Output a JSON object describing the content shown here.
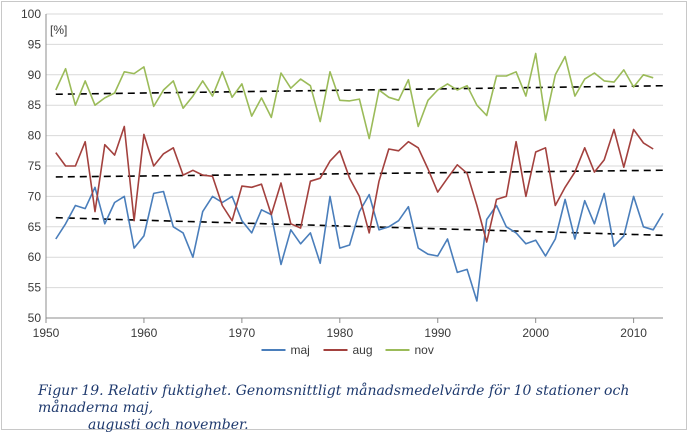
{
  "chart_data": {
    "type": "line",
    "unit_label": "[%]",
    "xlim": [
      1950,
      2013
    ],
    "ylim": [
      50,
      100
    ],
    "x_ticks": [
      1950,
      1960,
      1970,
      1980,
      1990,
      2000,
      2010
    ],
    "y_ticks": [
      50,
      55,
      60,
      65,
      70,
      75,
      80,
      85,
      90,
      95,
      100
    ],
    "grid": true,
    "legend_position": "bottom-center",
    "x": [
      1951,
      1952,
      1953,
      1954,
      1955,
      1956,
      1957,
      1958,
      1959,
      1960,
      1961,
      1962,
      1963,
      1964,
      1965,
      1966,
      1967,
      1968,
      1969,
      1970,
      1971,
      1972,
      1973,
      1974,
      1975,
      1976,
      1977,
      1978,
      1979,
      1980,
      1981,
      1982,
      1983,
      1984,
      1985,
      1986,
      1987,
      1988,
      1989,
      1990,
      1991,
      1992,
      1993,
      1994,
      1995,
      1996,
      1997,
      1998,
      1999,
      2000,
      2001,
      2002,
      2003,
      2004,
      2005,
      2006,
      2007,
      2008,
      2009,
      2010,
      2011,
      2012,
      2013
    ],
    "series": [
      {
        "name": "maj",
        "color": "#4a7ebb",
        "values": [
          63.0,
          65.5,
          68.5,
          68.0,
          71.5,
          65.5,
          69.0,
          70.0,
          61.5,
          63.5,
          70.5,
          70.8,
          65.0,
          64.0,
          60.0,
          67.5,
          70.0,
          69.0,
          70.0,
          66.0,
          64.0,
          67.8,
          67.0,
          58.8,
          64.5,
          62.2,
          64.0,
          59.0,
          70.0,
          61.5,
          62.0,
          67.5,
          70.3,
          64.5,
          65.0,
          66.0,
          68.3,
          61.5,
          60.5,
          60.2,
          63.0,
          57.5,
          58.0,
          52.8,
          66.2,
          68.5,
          65.0,
          64.0,
          62.2,
          62.8,
          60.2,
          63.0,
          69.5,
          63.0,
          69.3,
          65.5,
          70.5,
          61.8,
          63.5,
          70.0,
          65.0,
          64.5,
          67.2
        ],
        "trend": [
          66.5,
          63.6
        ]
      },
      {
        "name": "aug",
        "color": "#a3413e",
        "values": [
          77.2,
          75.0,
          75.0,
          79.0,
          67.5,
          78.5,
          76.8,
          81.5,
          66.0,
          80.2,
          75.0,
          77.0,
          78.0,
          73.5,
          74.3,
          73.5,
          73.3,
          68.5,
          66.0,
          71.7,
          71.5,
          72.0,
          67.0,
          72.2,
          65.5,
          64.8,
          72.5,
          73.0,
          75.8,
          77.5,
          73.0,
          70.0,
          64.0,
          72.5,
          77.8,
          77.5,
          79.0,
          78.0,
          74.5,
          70.7,
          73.0,
          75.2,
          73.8,
          68.5,
          62.5,
          69.5,
          70.0,
          79.0,
          70.0,
          77.3,
          78.0,
          68.5,
          71.5,
          74.0,
          78.0,
          74.0,
          76.0,
          81.0,
          74.8,
          81.0,
          78.8,
          77.8,
          null
        ],
        "trend": [
          73.2,
          74.3
        ]
      },
      {
        "name": "nov",
        "color": "#9bbb59",
        "values": [
          87.5,
          91.0,
          85.0,
          89.0,
          85.0,
          86.2,
          87.0,
          90.5,
          90.2,
          91.3,
          84.8,
          87.5,
          89.0,
          84.5,
          86.5,
          89.0,
          86.5,
          90.5,
          86.3,
          88.5,
          83.2,
          86.2,
          83.0,
          90.3,
          87.8,
          89.3,
          88.2,
          82.3,
          90.5,
          85.8,
          85.7,
          86.0,
          79.5,
          87.5,
          86.3,
          85.8,
          89.2,
          81.5,
          85.8,
          87.5,
          88.5,
          87.5,
          88.2,
          85.0,
          83.3,
          89.8,
          89.8,
          90.5,
          86.5,
          93.5,
          82.5,
          90.0,
          93.0,
          86.5,
          89.3,
          90.3,
          89.0,
          88.8,
          90.8,
          88.0,
          90.0,
          89.5,
          null
        ],
        "trend": [
          86.8,
          88.2
        ]
      }
    ]
  },
  "caption": {
    "line1": "Figur 19. Relativ fuktighet. Genomsnittligt månadsmedelvärde för 10 stationer och månaderna maj,",
    "line2": "augusti och november."
  }
}
